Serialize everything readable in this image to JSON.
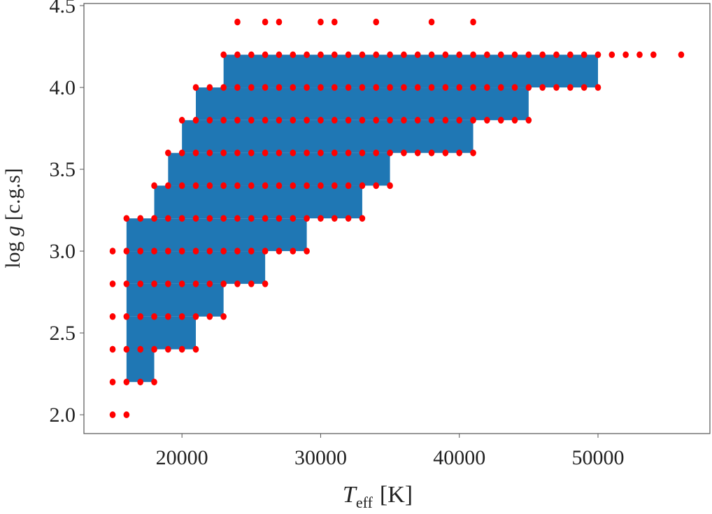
{
  "chart_data": {
    "type": "scatter",
    "xlabel": {
      "main": "T",
      "sub": "eff",
      "unit": "[K]"
    },
    "ylabel": {
      "main": "log ",
      "italic": "g",
      "unit": " [c.g.s]"
    },
    "xlim": [
      12930,
      58070
    ],
    "ylim": [
      1.885,
      4.513
    ],
    "xticks": [
      20000,
      30000,
      40000,
      50000
    ],
    "xtick_labels": [
      "20000",
      "30000",
      "40000",
      "50000"
    ],
    "yticks": [
      2.0,
      2.5,
      3.0,
      3.5,
      4.0,
      4.5
    ],
    "ytick_labels": [
      "2.0",
      "2.5",
      "3.0",
      "3.5",
      "4.0",
      "4.5"
    ],
    "grid": false,
    "colors": {
      "points": "#ff0000",
      "filled_region": "#1f77b4"
    },
    "teff_step": 1000,
    "point_rows": [
      {
        "logg": 4.4,
        "teff": [
          24000,
          26000,
          27000,
          30000,
          31000,
          34000,
          38000,
          41000
        ]
      },
      {
        "logg": 4.2,
        "teff_range": [
          23000,
          50000
        ],
        "extra_teff": [
          51000,
          52000,
          53000,
          54000,
          56000
        ]
      },
      {
        "logg": 4.0,
        "teff_range": [
          21000,
          50000
        ]
      },
      {
        "logg": 3.8,
        "teff_range": [
          20000,
          45000
        ]
      },
      {
        "logg": 3.6,
        "teff_range": [
          19000,
          41000
        ]
      },
      {
        "logg": 3.4,
        "teff_range": [
          18000,
          35000
        ]
      },
      {
        "logg": 3.2,
        "teff_range": [
          16000,
          33000
        ]
      },
      {
        "logg": 3.0,
        "teff_range": [
          15000,
          29000
        ]
      },
      {
        "logg": 2.8,
        "teff_range": [
          15000,
          26000
        ]
      },
      {
        "logg": 2.6,
        "teff_range": [
          15000,
          23000
        ]
      },
      {
        "logg": 2.4,
        "teff_range": [
          15000,
          21000
        ]
      },
      {
        "logg": 2.2,
        "teff_range": [
          15000,
          18000
        ]
      },
      {
        "logg": 2.0,
        "teff_range": [
          15000,
          16000
        ]
      }
    ],
    "filled_regions": [
      {
        "logg": [
          4.0,
          4.2
        ],
        "teff": [
          23000,
          50000
        ]
      },
      {
        "logg": [
          3.8,
          4.0
        ],
        "teff": [
          21000,
          45000
        ]
      },
      {
        "logg": [
          3.6,
          3.8
        ],
        "teff": [
          20000,
          41000
        ]
      },
      {
        "logg": [
          3.4,
          3.6
        ],
        "teff": [
          19000,
          35000
        ]
      },
      {
        "logg": [
          3.2,
          3.4
        ],
        "teff": [
          18000,
          33000
        ]
      },
      {
        "logg": [
          3.0,
          3.2
        ],
        "teff": [
          16000,
          29000
        ]
      },
      {
        "logg": [
          2.8,
          3.0
        ],
        "teff": [
          16000,
          26000
        ]
      },
      {
        "logg": [
          2.6,
          2.8
        ],
        "teff": [
          16000,
          23000
        ]
      },
      {
        "logg": [
          2.4,
          2.6
        ],
        "teff": [
          16000,
          21000
        ]
      },
      {
        "logg": [
          2.2,
          2.4
        ],
        "teff": [
          16000,
          18000
        ]
      }
    ]
  }
}
